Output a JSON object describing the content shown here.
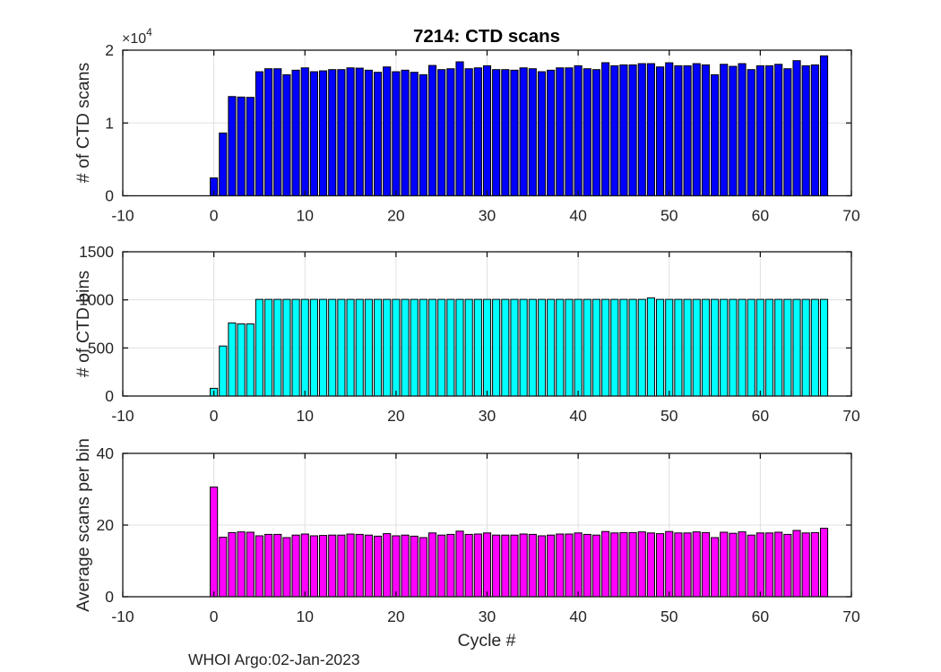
{
  "figure": {
    "title": "7214: CTD scans",
    "xlabel": "Cycle #",
    "footer": "WHOI Argo:02-Jan-2023",
    "background_color": "#ffffff"
  },
  "chart_data": [
    {
      "id": "ctd-scans",
      "type": "bar",
      "title": "7214: CTD scans",
      "ylabel": "# of CTD scans",
      "y_scale_prefix": "×10",
      "y_scale_exp": "4",
      "bar_color": "#0000ff",
      "bar_edge_color": "#000000",
      "grid": true,
      "xlim": [
        -10,
        70
      ],
      "ylim": [
        0,
        20000
      ],
      "xticks": [
        -10,
        0,
        10,
        20,
        30,
        40,
        50,
        60,
        70
      ],
      "xtick_labels": [
        "-10",
        "0",
        "10",
        "20",
        "30",
        "40",
        "50",
        "60",
        "70"
      ],
      "yticks": [
        0,
        10000,
        20000
      ],
      "ytick_labels": [
        "0",
        "1",
        "2"
      ],
      "x": [
        0,
        1,
        2,
        3,
        4,
        5,
        6,
        7,
        8,
        9,
        10,
        11,
        12,
        13,
        14,
        15,
        16,
        17,
        18,
        19,
        20,
        21,
        22,
        23,
        24,
        25,
        26,
        27,
        28,
        29,
        30,
        31,
        32,
        33,
        34,
        35,
        36,
        37,
        38,
        39,
        40,
        41,
        42,
        43,
        44,
        45,
        46,
        47,
        48,
        49,
        50,
        51,
        52,
        53,
        54,
        55,
        56,
        57,
        58,
        59,
        60,
        61,
        62,
        63,
        64,
        65,
        66,
        67
      ],
      "values": [
        2450,
        8620,
        13630,
        13560,
        13520,
        17040,
        17450,
        17450,
        16630,
        17250,
        17570,
        17040,
        17160,
        17330,
        17330,
        17570,
        17530,
        17250,
        16960,
        17700,
        17040,
        17250,
        16960,
        16630,
        17900,
        17330,
        17450,
        18400,
        17450,
        17570,
        17860,
        17330,
        17330,
        17250,
        17570,
        17450,
        17040,
        17250,
        17570,
        17570,
        17860,
        17450,
        17330,
        18280,
        17860,
        17980,
        17980,
        18150,
        18150,
        17700,
        18270,
        17860,
        17860,
        18150,
        17980,
        16630,
        18060,
        17780,
        18150,
        17330,
        17860,
        17860,
        18060,
        17450,
        18560,
        17860,
        17980,
        19220
      ]
    },
    {
      "id": "ctd-bins",
      "type": "bar",
      "ylabel": "# of CTD bins",
      "bar_color": "#00ffff",
      "bar_edge_color": "#000000",
      "grid": true,
      "xlim": [
        -10,
        70
      ],
      "ylim": [
        0,
        1500
      ],
      "xticks": [
        -10,
        0,
        10,
        20,
        30,
        40,
        50,
        60,
        70
      ],
      "xtick_labels": [
        "-10",
        "0",
        "10",
        "20",
        "30",
        "40",
        "50",
        "60",
        "70"
      ],
      "yticks": [
        0,
        500,
        1000,
        1500
      ],
      "ytick_labels": [
        "0",
        "500",
        "1000",
        "1500"
      ],
      "x": [
        0,
        1,
        2,
        3,
        4,
        5,
        6,
        7,
        8,
        9,
        10,
        11,
        12,
        13,
        14,
        15,
        16,
        17,
        18,
        19,
        20,
        21,
        22,
        23,
        24,
        25,
        26,
        27,
        28,
        29,
        30,
        31,
        32,
        33,
        34,
        35,
        36,
        37,
        38,
        39,
        40,
        41,
        42,
        43,
        44,
        45,
        46,
        47,
        48,
        49,
        50,
        51,
        52,
        53,
        54,
        55,
        56,
        57,
        58,
        59,
        60,
        61,
        62,
        63,
        64,
        65,
        66,
        67
      ],
      "values": [
        80,
        520,
        760,
        750,
        750,
        1005,
        1005,
        1005,
        1005,
        1005,
        1005,
        1005,
        1005,
        1005,
        1005,
        1005,
        1005,
        1005,
        1005,
        1005,
        1005,
        1005,
        1005,
        1005,
        1005,
        1005,
        1005,
        1005,
        1005,
        1005,
        1005,
        1005,
        1005,
        1005,
        1005,
        1005,
        1005,
        1005,
        1005,
        1005,
        1005,
        1005,
        1005,
        1005,
        1005,
        1005,
        1005,
        1005,
        1020,
        1005,
        1005,
        1005,
        1005,
        1005,
        1005,
        1005,
        1005,
        1005,
        1005,
        1005,
        1005,
        1005,
        1005,
        1005,
        1005,
        1005,
        1005,
        1005
      ]
    },
    {
      "id": "avg-scans-per-bin",
      "type": "bar",
      "ylabel": "Average scans per bin",
      "xlabel": "Cycle #",
      "bar_color": "#ff00ff",
      "bar_edge_color": "#000000",
      "grid": true,
      "xlim": [
        -10,
        70
      ],
      "ylim": [
        0,
        40
      ],
      "xticks": [
        -10,
        0,
        10,
        20,
        30,
        40,
        50,
        60,
        70
      ],
      "xtick_labels": [
        "-10",
        "0",
        "10",
        "20",
        "30",
        "40",
        "50",
        "60",
        "70"
      ],
      "yticks": [
        0,
        20,
        40
      ],
      "ytick_labels": [
        "0",
        "20",
        "40"
      ],
      "x": [
        0,
        1,
        2,
        3,
        4,
        5,
        6,
        7,
        8,
        9,
        10,
        11,
        12,
        13,
        14,
        15,
        16,
        17,
        18,
        19,
        20,
        21,
        22,
        23,
        24,
        25,
        26,
        27,
        28,
        29,
        30,
        31,
        32,
        33,
        34,
        35,
        36,
        37,
        38,
        39,
        40,
        41,
        42,
        43,
        44,
        45,
        46,
        47,
        48,
        49,
        50,
        51,
        52,
        53,
        54,
        55,
        56,
        57,
        58,
        59,
        60,
        61,
        62,
        63,
        64,
        65,
        66,
        67
      ],
      "values": [
        30.6,
        16.6,
        17.9,
        18.1,
        18.0,
        17.0,
        17.4,
        17.4,
        16.5,
        17.2,
        17.5,
        17.0,
        17.1,
        17.2,
        17.2,
        17.5,
        17.4,
        17.2,
        16.9,
        17.6,
        17.0,
        17.2,
        16.9,
        16.5,
        17.8,
        17.2,
        17.4,
        18.3,
        17.4,
        17.5,
        17.8,
        17.2,
        17.2,
        17.2,
        17.5,
        17.4,
        17.0,
        17.2,
        17.5,
        17.5,
        17.8,
        17.4,
        17.2,
        18.2,
        17.8,
        17.9,
        17.9,
        18.1,
        17.8,
        17.6,
        18.2,
        17.8,
        17.8,
        18.1,
        17.9,
        16.5,
        18.0,
        17.7,
        18.1,
        17.2,
        17.8,
        17.8,
        18.0,
        17.4,
        18.5,
        17.8,
        17.9,
        19.1
      ]
    }
  ]
}
